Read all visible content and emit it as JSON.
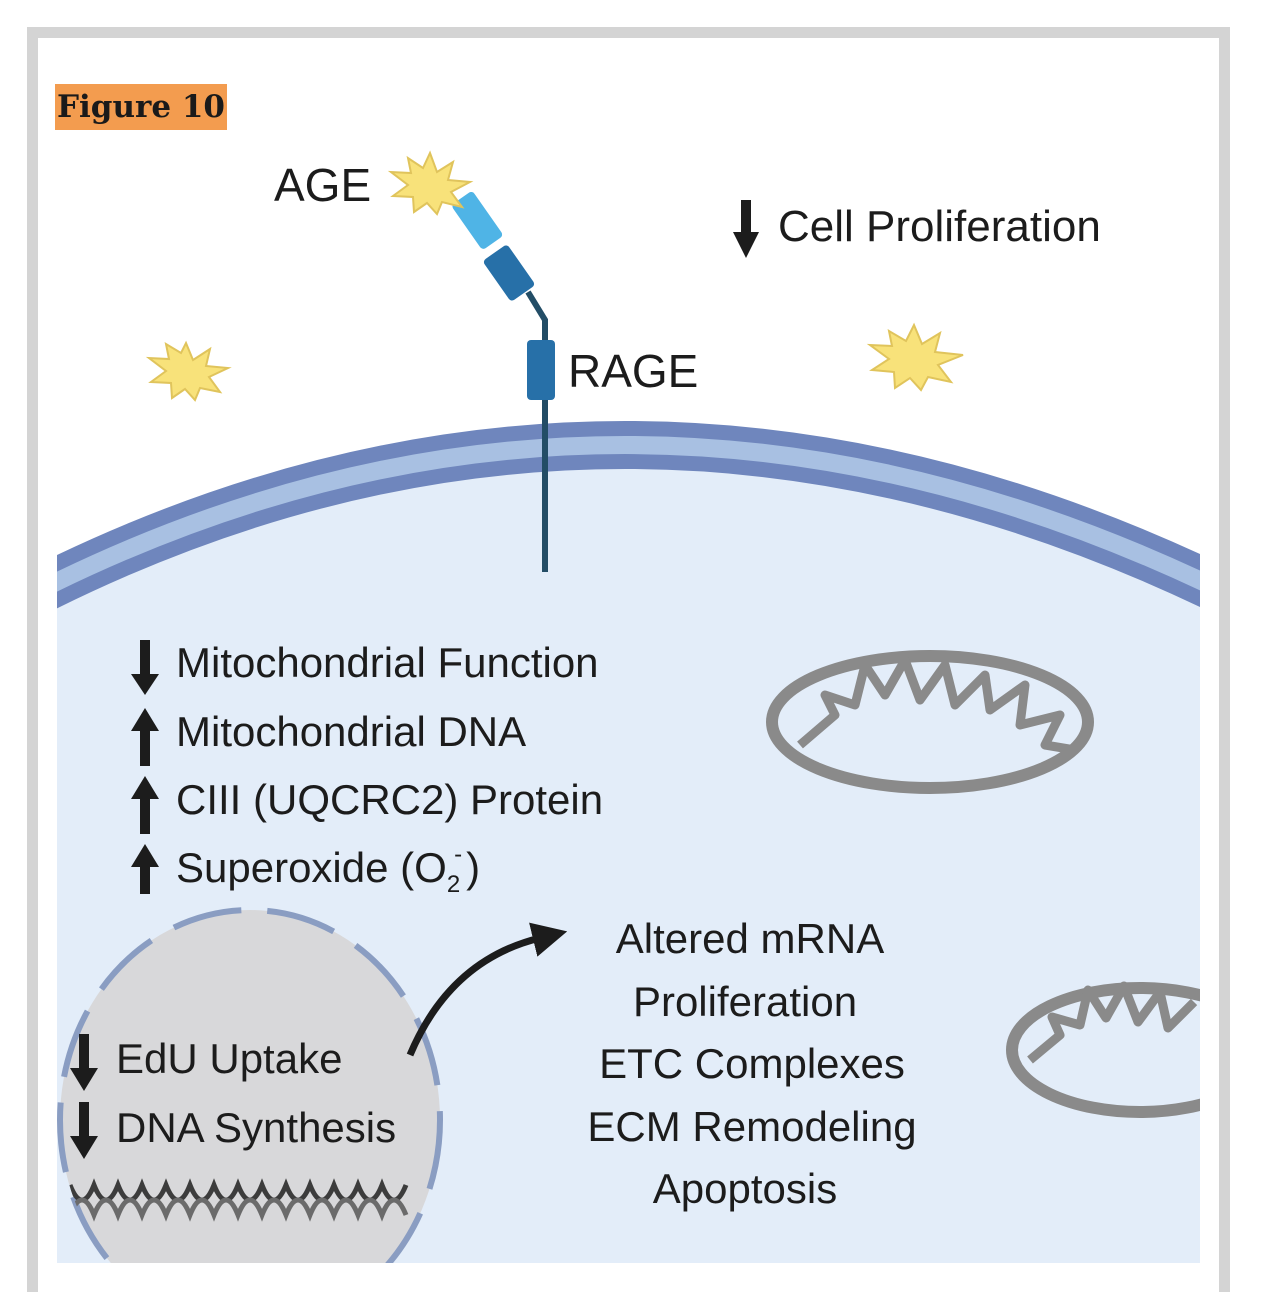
{
  "figure": {
    "label": "Figure 10"
  },
  "extracellular": {
    "age_label": "AGE",
    "rage_label": "RAGE",
    "cell_proliferation": "Cell Proliferation"
  },
  "cytoplasm": {
    "items": [
      {
        "direction": "down",
        "text": "Mitochondrial Function"
      },
      {
        "direction": "up",
        "text": "Mitochondrial DNA"
      },
      {
        "direction": "up",
        "text": "CIII (UQCRC2) Protein"
      },
      {
        "direction": "up",
        "text_main": "Superoxide (O",
        "subscript": "2",
        "superscript": "-",
        "text_close": ")"
      }
    ]
  },
  "nucleus": {
    "items": [
      {
        "direction": "down",
        "text": "EdU Uptake"
      },
      {
        "direction": "down",
        "text": "DNA Synthesis"
      }
    ]
  },
  "altered": {
    "lines": [
      "Altered mRNA",
      "Proliferation",
      "ETC Complexes",
      "ECM Remodeling",
      "Apoptosis"
    ]
  },
  "colors": {
    "cytoplasm": "#e3edf9",
    "membrane_outer": "#6f86bd",
    "membrane_inner": "#a8c0e2",
    "nucleus": "#d8d8da",
    "nucleus_envelope": "#8a9dc2",
    "receptor_light": "#4fb4e6",
    "receptor_dark": "#2770a8",
    "age_star": "#f8e27a",
    "mitochondria": "#8a8a8a",
    "figure_label_bg": "#f39c4f"
  }
}
